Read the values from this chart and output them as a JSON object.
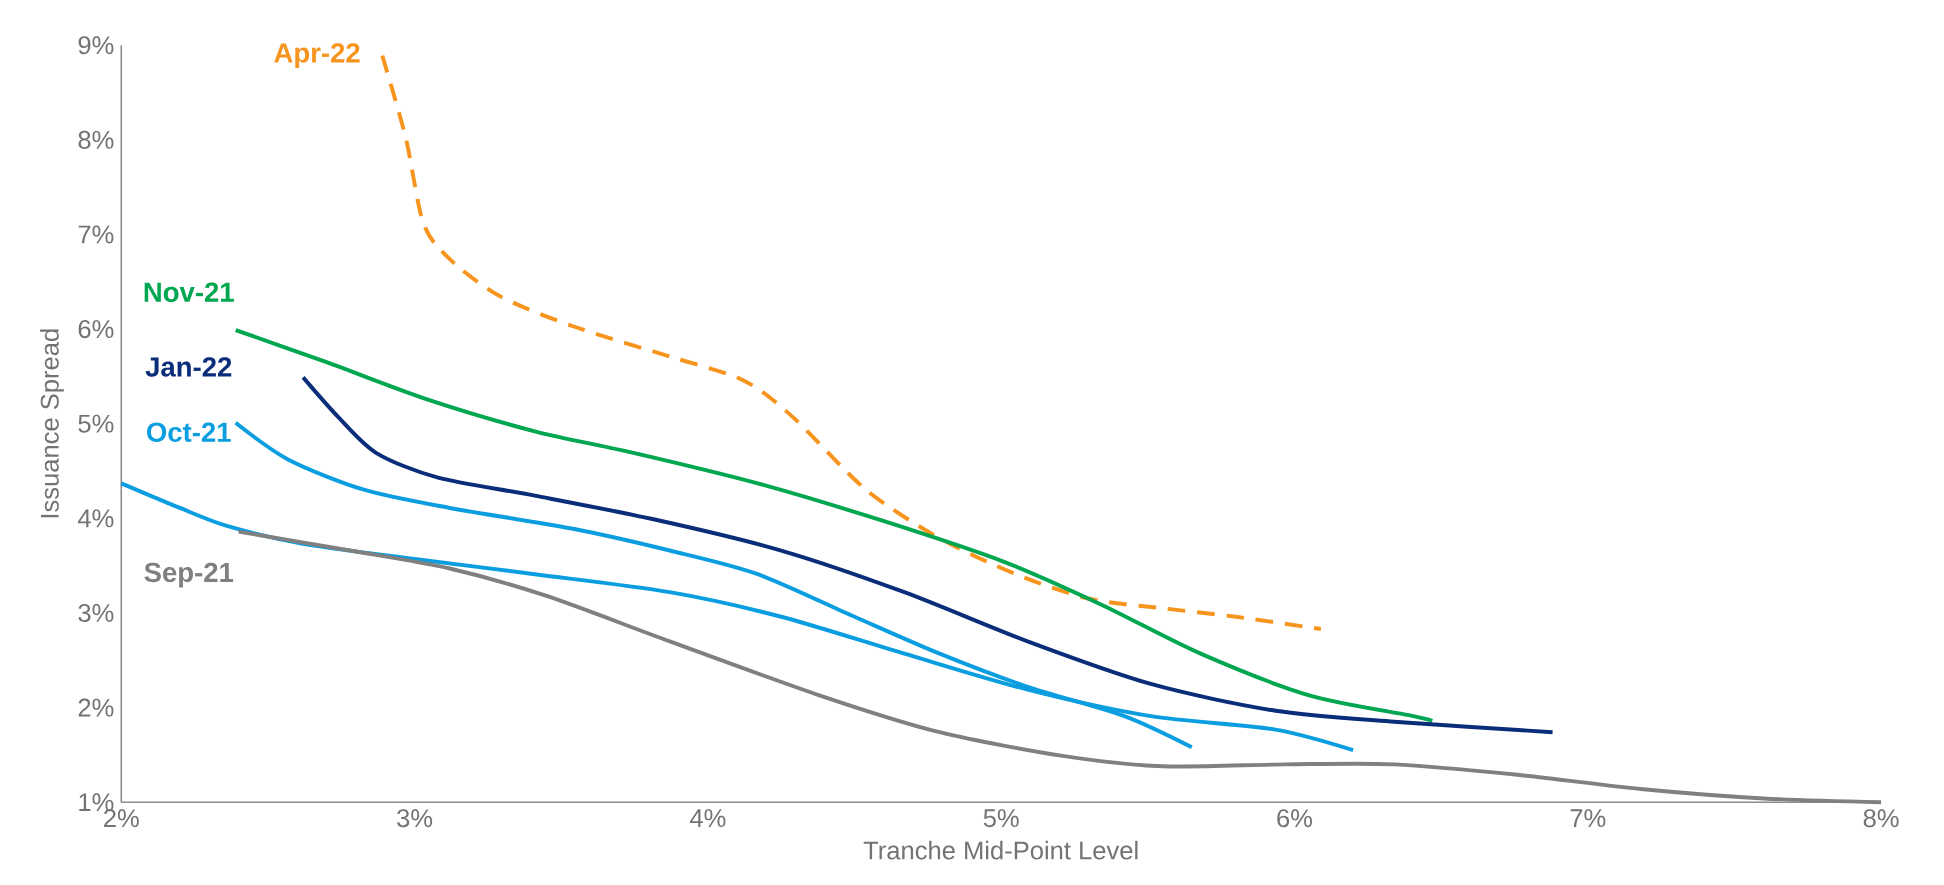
{
  "chart_data": {
    "type": "line",
    "xlabel": "Tranche  Mid-Point Level",
    "ylabel": "Issuance Spread",
    "xlim": [
      2,
      8
    ],
    "ylim": [
      1,
      9
    ],
    "xticks": [
      {
        "value": 2,
        "label": "2%"
      },
      {
        "value": 3,
        "label": "3%"
      },
      {
        "value": 4,
        "label": "4%"
      },
      {
        "value": 5,
        "label": "5%"
      },
      {
        "value": 6,
        "label": "6%"
      },
      {
        "value": 7,
        "label": "7%"
      },
      {
        "value": 8,
        "label": "8%"
      }
    ],
    "yticks": [
      {
        "value": 1,
        "label": "1%"
      },
      {
        "value": 2,
        "label": "2%"
      },
      {
        "value": 3,
        "label": "3%"
      },
      {
        "value": 4,
        "label": "4%"
      },
      {
        "value": 5,
        "label": "5%"
      },
      {
        "value": 6,
        "label": "6%"
      },
      {
        "value": 7,
        "label": "7%"
      },
      {
        "value": 8,
        "label": "8%"
      },
      {
        "value": 9,
        "label": "9%"
      }
    ],
    "grid": false,
    "legend": false,
    "marker": "none",
    "series": [
      {
        "name": "Apr-22",
        "color": "#f7941d",
        "line_style": "dashed",
        "x": [
          2.89,
          2.97,
          3.03,
          3.12,
          3.29,
          3.54,
          3.87,
          4.12,
          4.29,
          4.54,
          4.79,
          5.05,
          5.3,
          5.55,
          5.8,
          6.09
        ],
        "values": [
          8.89,
          8.02,
          7.12,
          6.74,
          6.35,
          6.03,
          5.71,
          5.46,
          5.07,
          4.3,
          3.79,
          3.41,
          3.15,
          3.05,
          2.96,
          2.83
        ]
      },
      {
        "name": "Nov-21",
        "color": "#00a650",
        "x": [
          2.39,
          2.7,
          3.04,
          3.41,
          3.75,
          4.17,
          4.59,
          5.01,
          5.34,
          5.68,
          6.05,
          6.39,
          6.47
        ],
        "values": [
          5.99,
          5.65,
          5.26,
          4.92,
          4.69,
          4.37,
          3.98,
          3.54,
          3.09,
          2.57,
          2.13,
          1.92,
          1.86
        ]
      },
      {
        "name": "Jan-22",
        "color": "#0a2d7a",
        "x": [
          2.62,
          2.74,
          2.87,
          3.08,
          3.41,
          3.83,
          4.25,
          4.67,
          5.09,
          5.51,
          5.93,
          6.34,
          6.88
        ],
        "values": [
          5.49,
          5.07,
          4.69,
          4.43,
          4.24,
          3.98,
          3.66,
          3.22,
          2.7,
          2.25,
          1.97,
          1.85,
          1.74
        ]
      },
      {
        "name": "Oct-21",
        "color": "#0a9ee0",
        "x": [
          2.39,
          2.57,
          2.83,
          3.12,
          3.54,
          3.87,
          4.17,
          4.5,
          4.79,
          5.09,
          5.42,
          5.65
        ],
        "values": [
          5.01,
          4.62,
          4.3,
          4.11,
          3.89,
          3.66,
          3.41,
          2.96,
          2.57,
          2.22,
          1.91,
          1.58
        ]
      },
      {
        "color": "#0a9ee0",
        "x": [
          2.0,
          2.2,
          2.36,
          2.62,
          3.0,
          3.41,
          3.87,
          4.25,
          4.67,
          5.09,
          5.51,
          5.93,
          6.2
        ],
        "values": [
          4.37,
          4.11,
          3.92,
          3.73,
          3.57,
          3.41,
          3.22,
          2.96,
          2.57,
          2.19,
          1.91,
          1.77,
          1.55
        ]
      },
      {
        "name": "Sep-21",
        "color": "#808080",
        "x": [
          2.4,
          2.78,
          3.12,
          3.45,
          3.87,
          4.38,
          4.79,
          5.21,
          5.55,
          5.97,
          6.34,
          6.76,
          7.18,
          7.6,
          8.0
        ],
        "values": [
          3.86,
          3.66,
          3.47,
          3.18,
          2.7,
          2.13,
          1.74,
          1.49,
          1.38,
          1.4,
          1.4,
          1.29,
          1.14,
          1.04,
          1.0
        ]
      }
    ]
  }
}
